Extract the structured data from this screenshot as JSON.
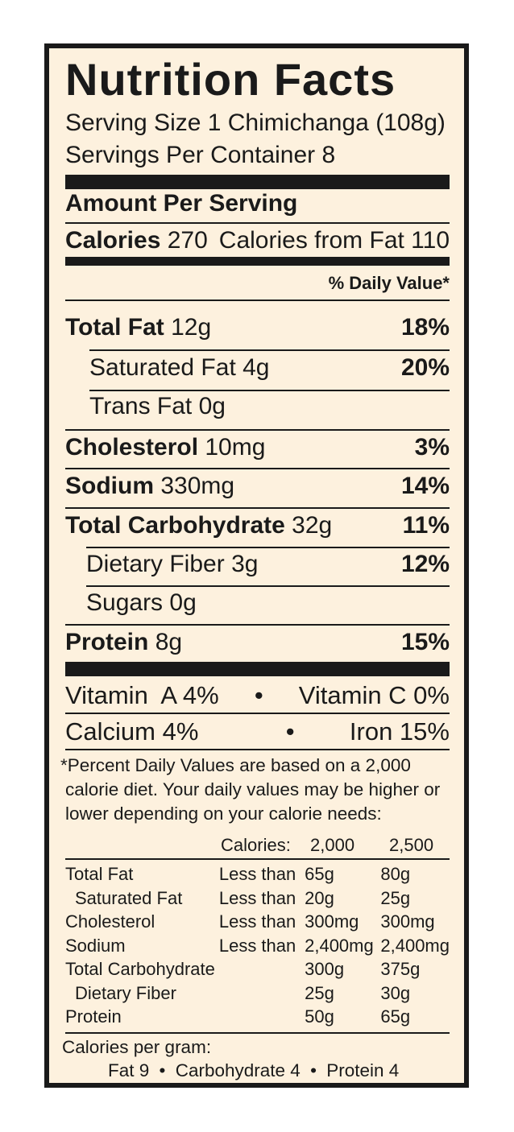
{
  "title": "Nutrition Facts",
  "serving_size": "Serving Size 1 Chimichanga (108g)",
  "servings_per_container": "Servings Per Container 8",
  "amount_per_serving": "Amount Per Serving",
  "calories_label": "Calories",
  "calories_value": "270",
  "calories_from_fat": "Calories from Fat 110",
  "daily_value_header": "% Daily Value*",
  "nutrients": [
    {
      "name": "Total Fat",
      "amount": "12g",
      "dv": "18%"
    },
    {
      "name": "Saturated Fat",
      "amount": "4g",
      "dv": "20%"
    },
    {
      "name": "Trans Fat",
      "amount": "0g",
      "dv": ""
    },
    {
      "name": "Cholesterol",
      "amount": "10mg",
      "dv": "3%"
    },
    {
      "name": "Sodium",
      "amount": "330mg",
      "dv": "14%"
    },
    {
      "name": "Total Carbohydrate",
      "amount": "32g",
      "dv": "11%"
    },
    {
      "name": "Dietary Fiber",
      "amount": "3g",
      "dv": "12%"
    },
    {
      "name": "Sugars",
      "amount": "0g",
      "dv": ""
    },
    {
      "name": "Protein",
      "amount": "8g",
      "dv": "15%"
    }
  ],
  "vitamins": {
    "vitamin_a": "Vitamin  A 4%",
    "vitamin_c": "Vitamin C 0%",
    "calcium": "Calcium 4%",
    "iron": "Iron 15%",
    "separator": "•"
  },
  "footnote": {
    "line1": "*Percent Daily Values are based on a 2,000",
    "line2": "calorie diet. Your daily values may be higher or",
    "line3": "lower depending on your calorie needs:"
  },
  "dv_table": {
    "header": [
      "",
      "",
      "Calories:",
      "2,000",
      "2,500"
    ],
    "rows": [
      [
        "Total Fat",
        "Less than",
        "65g",
        "80g"
      ],
      [
        "Saturated Fat",
        "Less than",
        "20g",
        "25g"
      ],
      [
        "Cholesterol",
        "Less than",
        "300mg",
        "300mg"
      ],
      [
        "Sodium",
        "Less than",
        "2,400mg",
        "2,400mg"
      ],
      [
        "Total Carbohydrate",
        "",
        "300g",
        "375g"
      ],
      [
        "Dietary Fiber",
        "",
        "25g",
        "30g"
      ],
      [
        "Protein",
        "",
        "50g",
        "65g"
      ]
    ]
  },
  "calories_per_gram": {
    "label": "Calories per gram:",
    "fat": "Fat 9",
    "carbohydrate": "Carbohydrate 4",
    "protein": "Protein 4",
    "separator": "•"
  }
}
